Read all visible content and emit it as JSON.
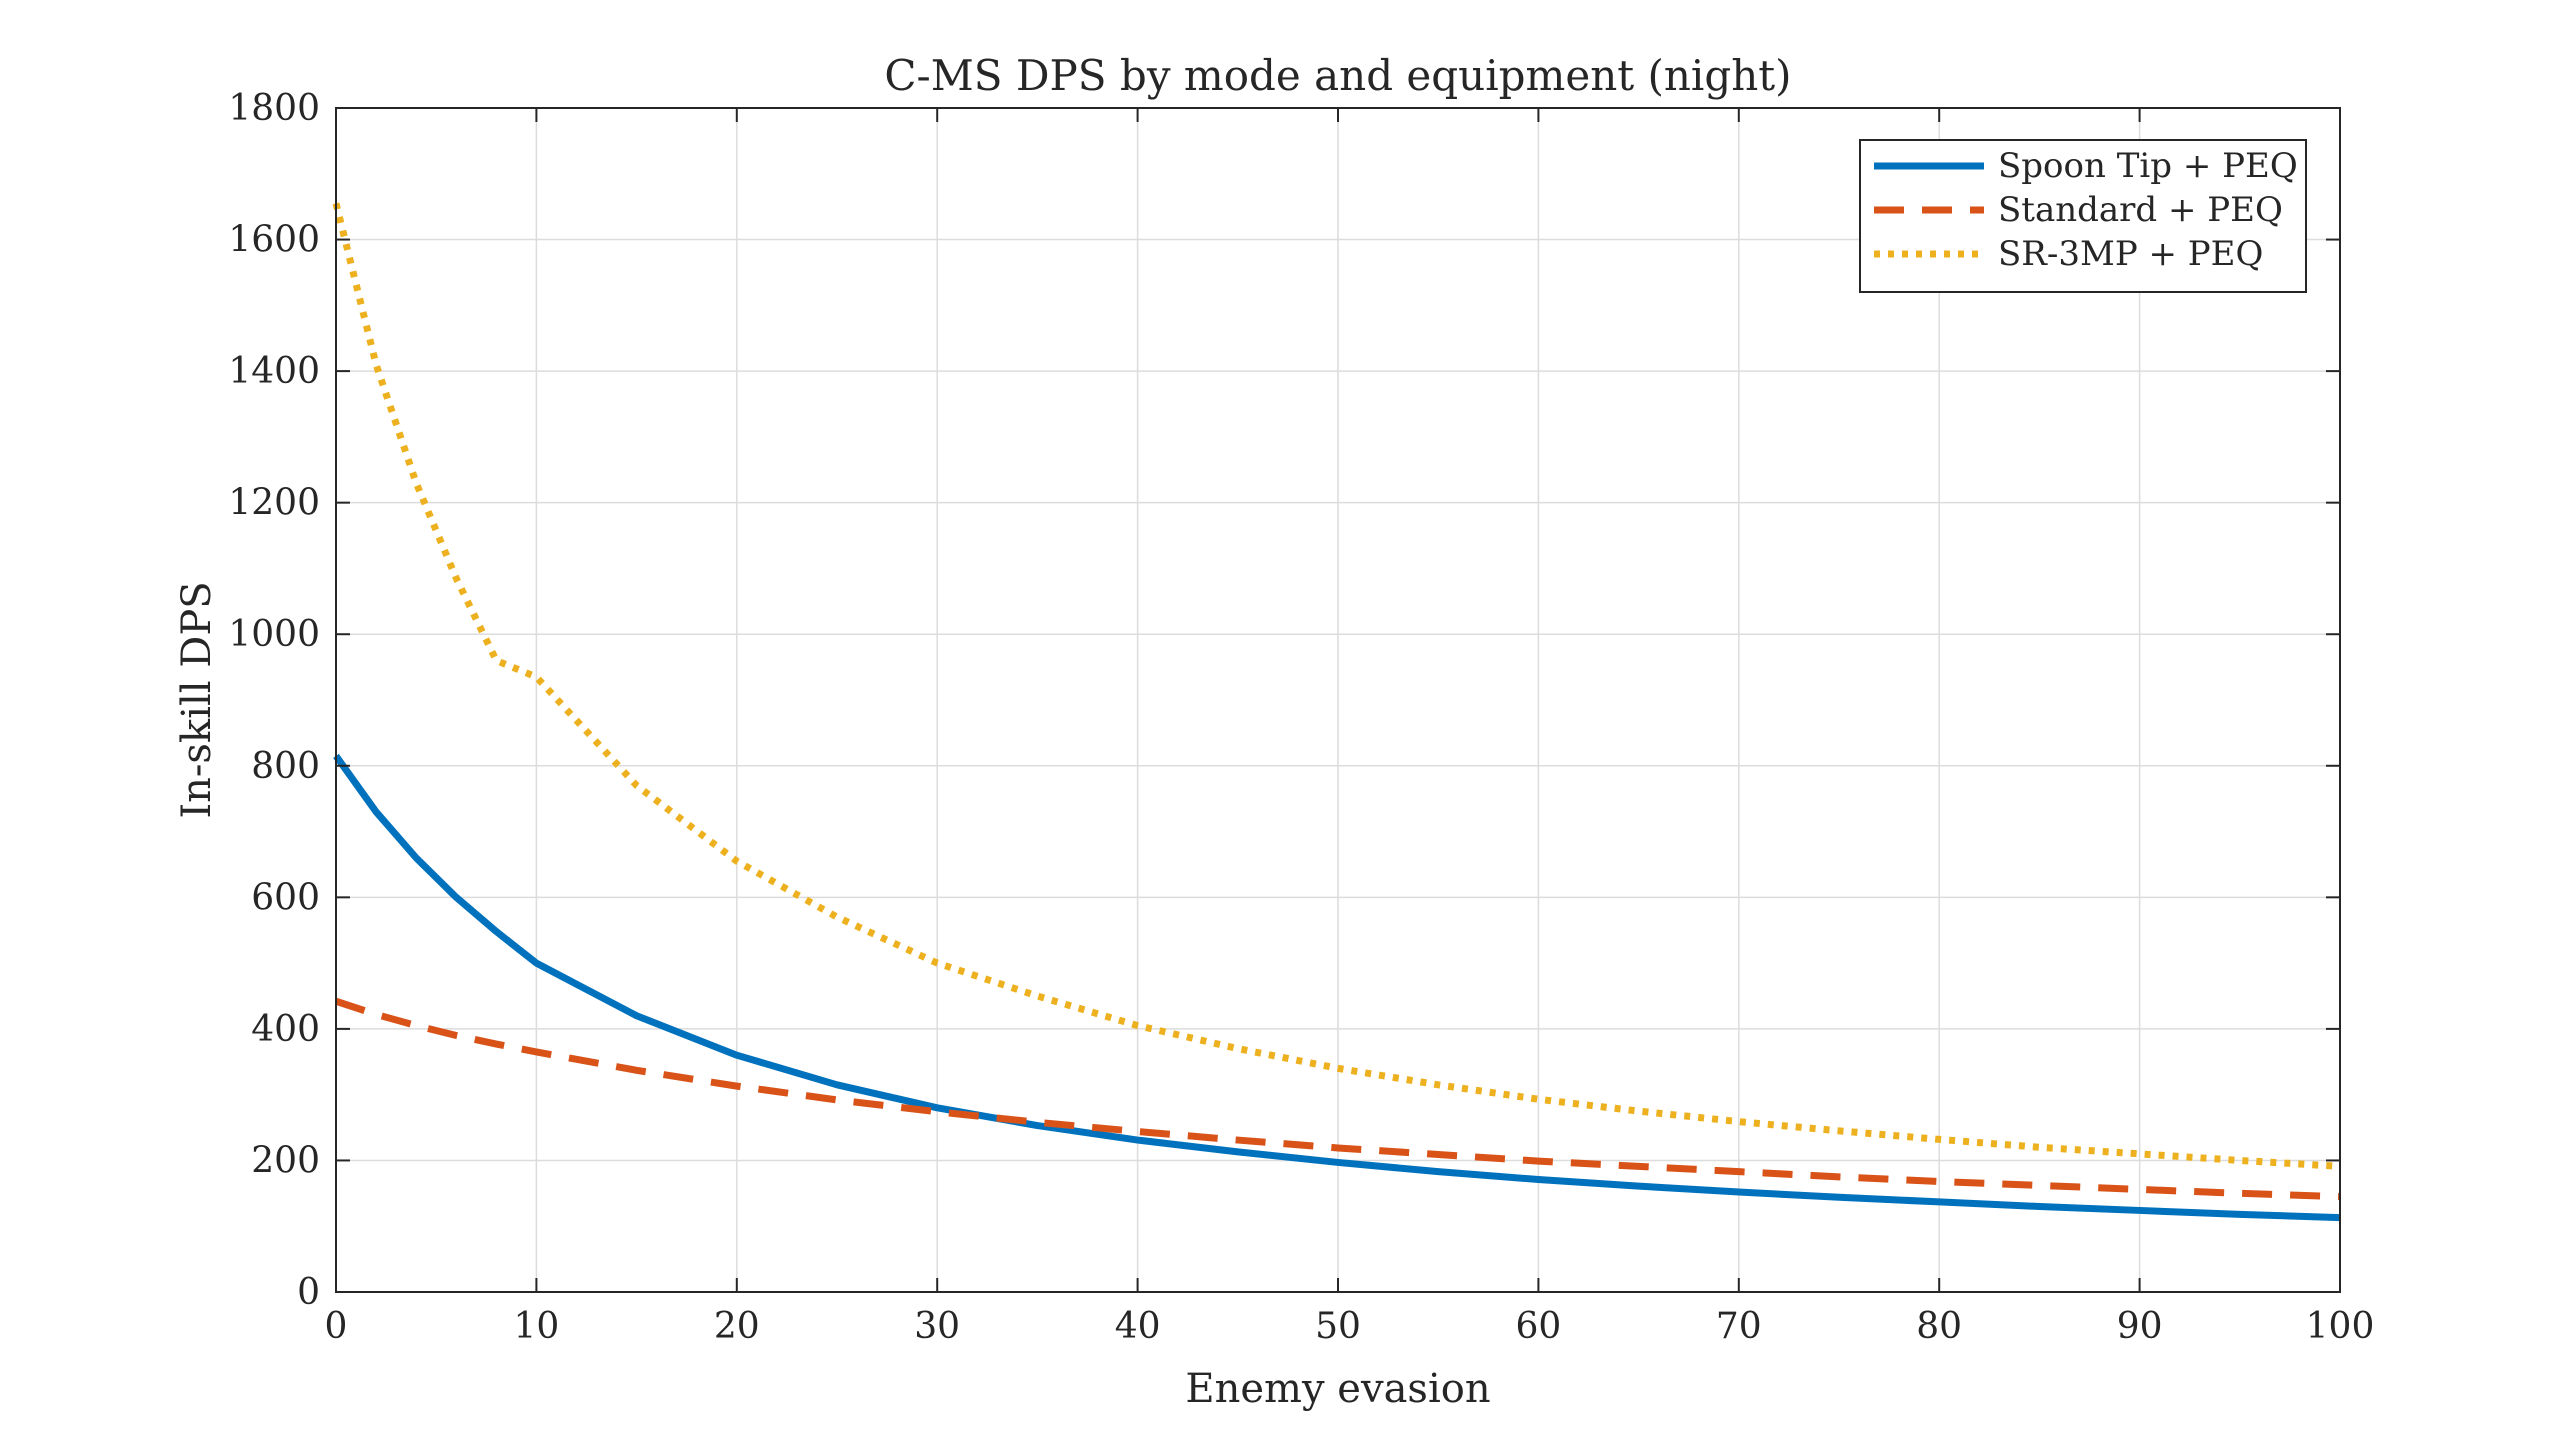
{
  "chart_data": {
    "type": "line",
    "title": "C-MS DPS by mode and equipment (night)",
    "xlabel": "Enemy evasion",
    "ylabel": "In-skill DPS",
    "xlim": [
      0,
      100
    ],
    "ylim": [
      0,
      1800
    ],
    "xticks": [
      0,
      10,
      20,
      30,
      40,
      50,
      60,
      70,
      80,
      90,
      100
    ],
    "yticks": [
      0,
      200,
      400,
      600,
      800,
      1000,
      1200,
      1400,
      1600,
      1800
    ],
    "grid": true,
    "legend_position": "top-right",
    "x": [
      0,
      2,
      4,
      6,
      8,
      10,
      15,
      20,
      25,
      30,
      35,
      40,
      45,
      50,
      55,
      60,
      65,
      70,
      75,
      80,
      85,
      90,
      95,
      100
    ],
    "series": [
      {
        "name": "Spoon Tip + PEQ",
        "color": "#0072BD",
        "style": "solid",
        "values": [
          815,
          730,
          660,
          600,
          548,
          500,
          420,
          360,
          315,
          280,
          253,
          231,
          213,
          197,
          183,
          171,
          161,
          152,
          144,
          137,
          130,
          124,
          118,
          113
        ]
      },
      {
        "name": "Standard + PEQ",
        "color": "#D95319",
        "style": "dashed",
        "values": [
          442,
          422,
          405,
          390,
          377,
          365,
          337,
          313,
          292,
          274,
          258,
          244,
          231,
          219,
          209,
          199,
          191,
          183,
          175,
          168,
          162,
          156,
          150,
          145
        ]
      },
      {
        "name": "SR-3MP + PEQ",
        "color": "#EDB120",
        "style": "dotted",
        "values": [
          1655,
          1410,
          1230,
          1085,
          960,
          935,
          770,
          655,
          570,
          500,
          450,
          405,
          370,
          340,
          315,
          293,
          275,
          259,
          245,
          232,
          220,
          210,
          200,
          191
        ]
      }
    ]
  }
}
